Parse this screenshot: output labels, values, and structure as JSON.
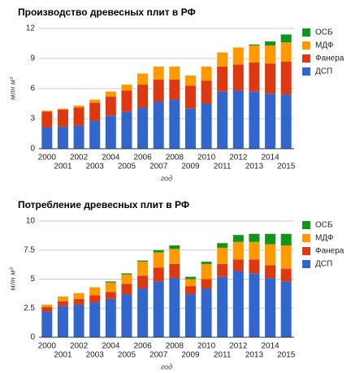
{
  "chart_data": [
    {
      "type": "stacked_bar",
      "title": "Производство древесных плит в РФ",
      "y_label": "млн м³",
      "x_label": "год",
      "categories": [
        "2000",
        "2001",
        "2002",
        "2003",
        "2004",
        "2005",
        "2006",
        "2007",
        "2008",
        "2009",
        "2010",
        "2011",
        "2012",
        "2013",
        "2014",
        "2015"
      ],
      "ylim": [
        0,
        12
      ],
      "yticks": [
        0,
        3,
        6,
        9,
        12
      ],
      "grid": true,
      "series": [
        {
          "name": "ДСП",
          "color": "#3366cc",
          "values": [
            2.1,
            2.2,
            2.3,
            2.8,
            3.3,
            3.7,
            4.1,
            4.7,
            4.9,
            4.0,
            4.5,
            5.7,
            5.8,
            5.7,
            5.5,
            5.4
          ]
        },
        {
          "name": "Фанера",
          "color": "#dc3912",
          "values": [
            1.6,
            1.7,
            1.8,
            1.8,
            1.9,
            2.1,
            2.3,
            2.2,
            2.0,
            2.3,
            2.3,
            2.5,
            2.6,
            2.9,
            3.0,
            3.3
          ]
        },
        {
          "name": "МДФ",
          "color": "#ff9900",
          "values": [
            0.1,
            0.1,
            0.2,
            0.3,
            0.5,
            0.6,
            1.1,
            1.3,
            1.3,
            1.0,
            1.4,
            1.4,
            1.7,
            1.7,
            1.8,
            1.9
          ]
        },
        {
          "name": "ОСБ",
          "color": "#109618",
          "values": [
            0,
            0,
            0,
            0,
            0,
            0,
            0,
            0,
            0,
            0,
            0,
            0,
            0,
            0.1,
            0.4,
            0.8
          ]
        }
      ]
    },
    {
      "type": "stacked_bar",
      "title": "Потребление древесных плит в РФ",
      "y_label": "млн м³",
      "x_label": "год",
      "categories": [
        "2000",
        "2001",
        "2002",
        "2003",
        "2004",
        "2005",
        "2006",
        "2007",
        "2008",
        "2009",
        "2010",
        "2011",
        "2012",
        "2013",
        "2014",
        "2015"
      ],
      "ylim": [
        0,
        10
      ],
      "yticks": [
        0,
        2.5,
        5,
        7.5,
        10
      ],
      "grid": true,
      "series": [
        {
          "name": "ДСП",
          "color": "#3366cc",
          "values": [
            2.2,
            2.7,
            2.8,
            3.0,
            3.3,
            3.7,
            4.2,
            4.8,
            5.1,
            3.7,
            4.2,
            5.2,
            5.7,
            5.5,
            5.1,
            4.8
          ]
        },
        {
          "name": "Фанера",
          "color": "#dc3912",
          "values": [
            0.4,
            0.4,
            0.5,
            0.6,
            0.6,
            0.9,
            1.1,
            1.2,
            1.2,
            0.7,
            0.8,
            1.1,
            1.0,
            1.2,
            1.1,
            1.1
          ]
        },
        {
          "name": "МДФ",
          "color": "#ff9900",
          "values": [
            0.2,
            0.4,
            0.5,
            0.7,
            0.8,
            0.8,
            1.2,
            1.3,
            1.3,
            0.6,
            1.3,
            1.4,
            1.5,
            1.5,
            1.8,
            2.0
          ]
        },
        {
          "name": "ОСБ",
          "color": "#109618",
          "values": [
            0,
            0,
            0,
            0,
            0.1,
            0.1,
            0.1,
            0.2,
            0.3,
            0.2,
            0.2,
            0.4,
            0.6,
            0.7,
            0.9,
            1.0
          ]
        }
      ]
    }
  ]
}
